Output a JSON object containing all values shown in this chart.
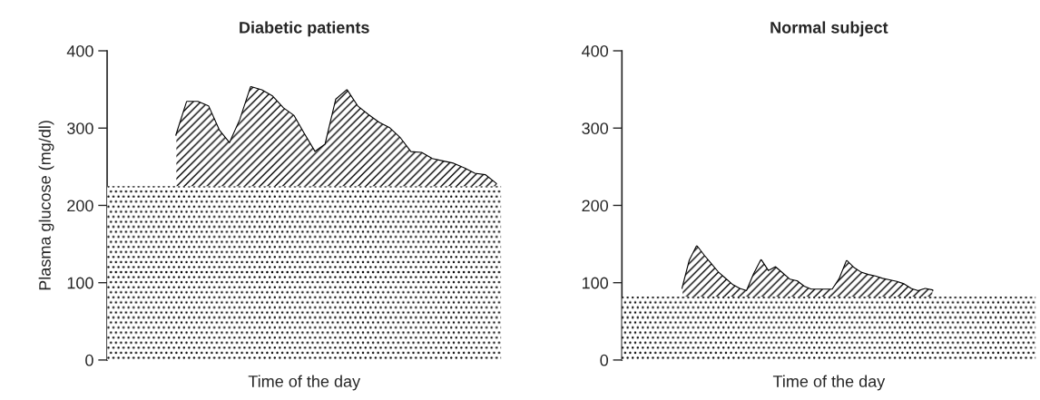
{
  "chart_data": [
    {
      "type": "area",
      "title": "Diabetic patients",
      "xlabel": "Time of the day",
      "ylabel": "Plasma glucose (mg/dl)",
      "categories": [
        null,
        null,
        null,
        null,
        null,
        null,
        null,
        null,
        null,
        null,
        null,
        null,
        null,
        null,
        null,
        null,
        null,
        null,
        null,
        null,
        null,
        null,
        null,
        null,
        null,
        null,
        null,
        null,
        null,
        null,
        null,
        null,
        null,
        null,
        null,
        null,
        null
      ],
      "series": [
        {
          "color": "#000000",
          "values": [
            null,
            null,
            null,
            null,
            null,
            null,
            291,
            334,
            334,
            328,
            297,
            280,
            311,
            353,
            349,
            341,
            326,
            316,
            292,
            269,
            279,
            337,
            349,
            328,
            317,
            307,
            300,
            287,
            269,
            268,
            260,
            257,
            254,
            248,
            241,
            239,
            228
          ]
        }
      ],
      "bands": [
        {
          "axis": "y",
          "from": 0,
          "to": 225,
          "color": "#000000"
        }
      ],
      "ylim": [
        0,
        400
      ],
      "yticks": [
        0,
        100,
        200,
        300,
        400
      ],
      "tick_labels": "y",
      "grid": false
    },
    {
      "type": "area",
      "title": "Normal subject",
      "xlabel": "Time of the day",
      "categories": [
        null,
        null,
        null,
        null,
        null,
        null,
        null,
        null,
        null,
        null,
        null,
        null,
        null,
        null,
        null,
        null,
        null,
        null,
        null,
        null,
        null,
        null,
        null,
        null,
        null,
        null,
        null,
        null,
        null,
        null,
        null,
        null,
        null,
        null,
        null,
        null,
        null,
        null,
        null,
        null,
        null,
        null,
        null,
        null,
        null,
        null,
        null,
        null,
        null,
        null,
        null,
        null,
        null,
        null,
        null,
        null,
        null,
        null
      ],
      "series": [
        {
          "color": "#000000",
          "values": [
            null,
            null,
            null,
            null,
            null,
            null,
            null,
            null,
            93,
            129,
            147,
            135,
            124,
            113,
            105,
            97,
            92,
            89,
            111,
            129,
            115,
            120,
            112,
            104,
            102,
            95,
            91,
            91,
            91,
            91,
            105,
            128,
            119,
            113,
            110,
            108,
            105,
            103,
            101,
            98,
            92,
            89,
            92,
            90,
            null,
            null,
            null,
            null,
            null,
            null,
            null,
            null,
            null,
            null,
            null,
            null,
            null,
            null
          ]
        }
      ],
      "bands": [
        {
          "axis": "y",
          "from": 0,
          "to": 82,
          "color": "#000000"
        }
      ],
      "ylim": [
        0,
        400
      ],
      "yticks": [
        0,
        100,
        200,
        300,
        400
      ],
      "tick_labels": "y",
      "grid": false
    }
  ]
}
